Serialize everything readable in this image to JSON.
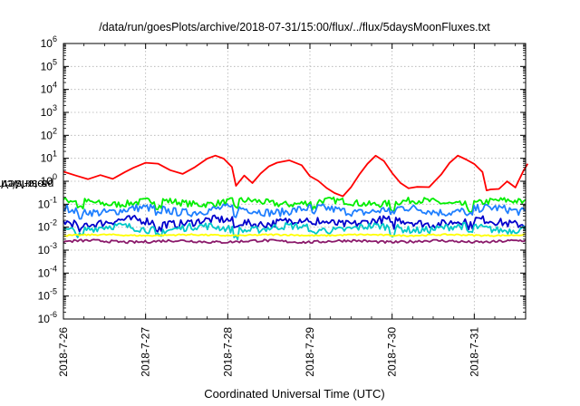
{
  "chart_data": {
    "type": "line",
    "title": "/data/run/goesPlots/archive/2018-07-31/15:00/flux/../flux/5daysMoonFluxes.txt",
    "xlabel": "Coordinated Universal Time (UTC)",
    "ylabel": "protons/cm²-s-sr-MeV",
    "ylabel_parts": {
      "pre": "protons/cm",
      "sup": "2",
      "post": "-s-sr-MeV"
    },
    "x_ticks": [
      "2018-7-26",
      "2018-7-27",
      "2018-7-28",
      "2018-7-29",
      "2018-7-30",
      "2018-7-31"
    ],
    "x_range": [
      "2018-07-26 00:00",
      "2018-07-31 15:00"
    ],
    "y_scale": "log",
    "y_range_exp": [
      -6,
      6
    ],
    "y_tick_labels": [
      {
        "base": "10",
        "exp": "-6"
      },
      {
        "base": "10",
        "exp": "-5"
      },
      {
        "base": "10",
        "exp": "-4"
      },
      {
        "base": "10",
        "exp": "-3"
      },
      {
        "base": "10",
        "exp": "-2"
      },
      {
        "base": "10",
        "exp": "-1"
      },
      {
        "base": "10",
        "exp": "0"
      },
      {
        "base": "10",
        "exp": "1"
      },
      {
        "base": "10",
        "exp": "2"
      },
      {
        "base": "10",
        "exp": "3"
      },
      {
        "base": "10",
        "exp": "4"
      },
      {
        "base": "10",
        "exp": "5"
      },
      {
        "base": "10",
        "exp": "6"
      }
    ],
    "grid": true,
    "series": [
      {
        "color": "#ff0000",
        "x_days": [
          0,
          0.15,
          0.3,
          0.45,
          0.6,
          0.75,
          0.85,
          1.0,
          1.15,
          1.3,
          1.45,
          1.6,
          1.75,
          1.85,
          1.95,
          2.05,
          2.1,
          2.2,
          2.3,
          2.4,
          2.5,
          2.6,
          2.75,
          2.9,
          3.0,
          3.1,
          3.2,
          3.3,
          3.4,
          3.5,
          3.6,
          3.7,
          3.8,
          3.9,
          4.0,
          4.1,
          4.2,
          4.3,
          4.45,
          4.6,
          4.7,
          4.8,
          4.9,
          5.0,
          5.1,
          5.15,
          5.2,
          5.3,
          5.4,
          5.5,
          5.6,
          5.65
        ],
        "values": [
          3,
          1.6,
          1.3,
          2,
          1.2,
          2.5,
          4,
          6,
          5.5,
          3,
          2,
          4,
          9,
          14,
          10,
          4,
          0.6,
          2,
          0.8,
          2.2,
          4,
          6,
          9,
          5,
          1.5,
          1,
          0.5,
          0.3,
          0.2,
          0.5,
          2,
          6,
          12,
          8,
          2.5,
          0.9,
          0.5,
          0.6,
          0.5,
          2,
          6,
          12,
          10,
          6,
          2.5,
          0.4,
          0.45,
          0.5,
          0.9,
          0.6,
          3,
          6
        ]
      },
      {
        "color": "#00ee00",
        "level": 0.12,
        "amp": 0.18
      },
      {
        "color": "#1f7fff",
        "level": 0.055,
        "amp": 0.22
      },
      {
        "color": "#0000cc",
        "level": 0.017,
        "amp": 0.22
      },
      {
        "color": "#00c8c8",
        "level": 0.009,
        "amp": 0.2
      },
      {
        "color": "#ffff00",
        "level": 0.0045,
        "amp": 0.04
      },
      {
        "color": "#8b1a6b",
        "level": 0.0024,
        "amp": 0.07
      }
    ]
  }
}
